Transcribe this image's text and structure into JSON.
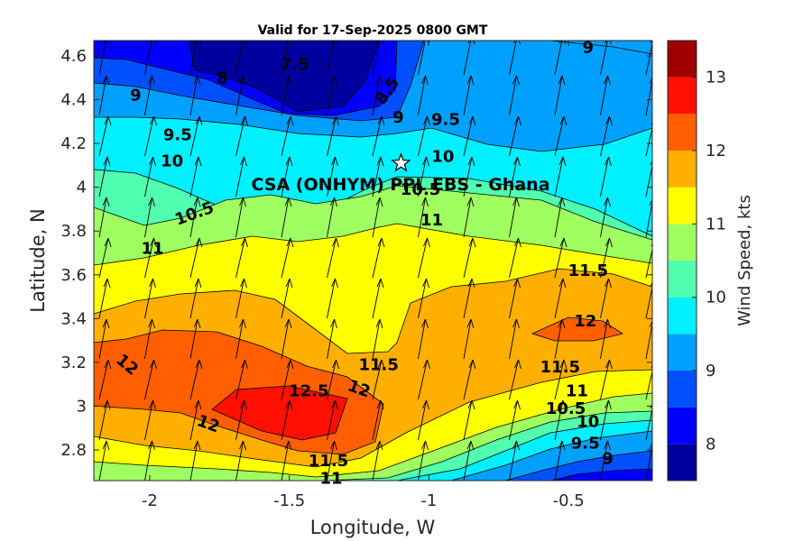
{
  "chart_data": {
    "type": "contour",
    "title": "Valid for 17-Sep-2025 0800 GMT",
    "xlabel": "Longitude, W",
    "ylabel": "Latitude, N",
    "xlim": [
      -2.2,
      -0.2
    ],
    "ylim": [
      2.66,
      4.67
    ],
    "x_ticks": [
      "-2",
      "-1.5",
      "-1",
      "-0.5"
    ],
    "y_ticks": [
      "2.8",
      "3",
      "3.2",
      "3.4",
      "3.6",
      "3.8",
      "4",
      "4.2",
      "4.4",
      "4.6"
    ],
    "colorbar": {
      "label": "Wind Speed, kts",
      "range": [
        7.5,
        13.5
      ],
      "ticks": [
        "8",
        "9",
        "10",
        "11",
        "12",
        "13"
      ],
      "levels": [
        {
          "lo": 7.5,
          "color": "#00009f"
        },
        {
          "lo": 8.0,
          "color": "#0000ff"
        },
        {
          "lo": 8.5,
          "color": "#0050ff"
        },
        {
          "lo": 9.0,
          "color": "#00a0ff"
        },
        {
          "lo": 9.5,
          "color": "#00f0ff"
        },
        {
          "lo": 10.0,
          "color": "#50ffaf"
        },
        {
          "lo": 10.5,
          "color": "#a0ff60"
        },
        {
          "lo": 11.0,
          "color": "#ffff00"
        },
        {
          "lo": 11.5,
          "color": "#ffaf00"
        },
        {
          "lo": 12.0,
          "color": "#ff5f00"
        },
        {
          "lo": 12.5,
          "color": "#ff0f00"
        },
        {
          "lo": 13.0,
          "color": "#a00000"
        }
      ]
    },
    "contour_labels": [
      {
        "text": "9",
        "lon": -0.43,
        "lat": 4.64,
        "rot": 0
      },
      {
        "text": "7.5",
        "lon": -1.48,
        "lat": 4.56,
        "rot": 0
      },
      {
        "text": "8",
        "lon": -1.74,
        "lat": 4.5,
        "rot": 0
      },
      {
        "text": "9",
        "lon": -2.05,
        "lat": 4.42,
        "rot": 0
      },
      {
        "text": "8.5",
        "lon": -1.15,
        "lat": 4.44,
        "rot": -55
      },
      {
        "text": "9",
        "lon": -1.11,
        "lat": 4.32,
        "rot": 0
      },
      {
        "text": "9.5",
        "lon": -0.94,
        "lat": 4.31,
        "rot": 0
      },
      {
        "text": "9.5",
        "lon": -1.9,
        "lat": 4.24,
        "rot": 0
      },
      {
        "text": "10",
        "lon": -1.92,
        "lat": 4.12,
        "rot": 0
      },
      {
        "text": "10",
        "lon": -0.95,
        "lat": 4.14,
        "rot": 0
      },
      {
        "text": "10.5",
        "lon": -1.03,
        "lat": 3.99,
        "rot": 0
      },
      {
        "text": "10.5",
        "lon": -1.84,
        "lat": 3.88,
        "rot": -20
      },
      {
        "text": "11",
        "lon": -1.99,
        "lat": 3.72,
        "rot": 0
      },
      {
        "text": "11",
        "lon": -0.99,
        "lat": 3.85,
        "rot": 0
      },
      {
        "text": "11.5",
        "lon": -0.43,
        "lat": 3.62,
        "rot": 0
      },
      {
        "text": "12",
        "lon": -0.44,
        "lat": 3.39,
        "rot": 0
      },
      {
        "text": "12",
        "lon": -2.08,
        "lat": 3.19,
        "rot": 40
      },
      {
        "text": "11.5",
        "lon": -1.18,
        "lat": 3.19,
        "rot": 0
      },
      {
        "text": "12",
        "lon": -1.25,
        "lat": 3.08,
        "rot": 20
      },
      {
        "text": "12.5",
        "lon": -1.43,
        "lat": 3.07,
        "rot": 0
      },
      {
        "text": "12",
        "lon": -1.79,
        "lat": 2.92,
        "rot": 20
      },
      {
        "text": "11.5",
        "lon": -0.53,
        "lat": 3.18,
        "rot": 0
      },
      {
        "text": "11",
        "lon": -0.47,
        "lat": 3.07,
        "rot": 0
      },
      {
        "text": "10.5",
        "lon": -0.51,
        "lat": 2.99,
        "rot": 0
      },
      {
        "text": "10",
        "lon": -0.43,
        "lat": 2.93,
        "rot": 0
      },
      {
        "text": "9.5",
        "lon": -0.44,
        "lat": 2.83,
        "rot": 0
      },
      {
        "text": "9",
        "lon": -0.36,
        "lat": 2.76,
        "rot": 0
      },
      {
        "text": "11.5",
        "lon": -1.36,
        "lat": 2.75,
        "rot": 0
      },
      {
        "text": "11",
        "lon": -1.35,
        "lat": 2.67,
        "rot": 0
      }
    ],
    "site": {
      "label": "CSA (ONHYM) PPL EBS  - Ghana",
      "lon": -1.1,
      "lat": 4.11
    }
  }
}
